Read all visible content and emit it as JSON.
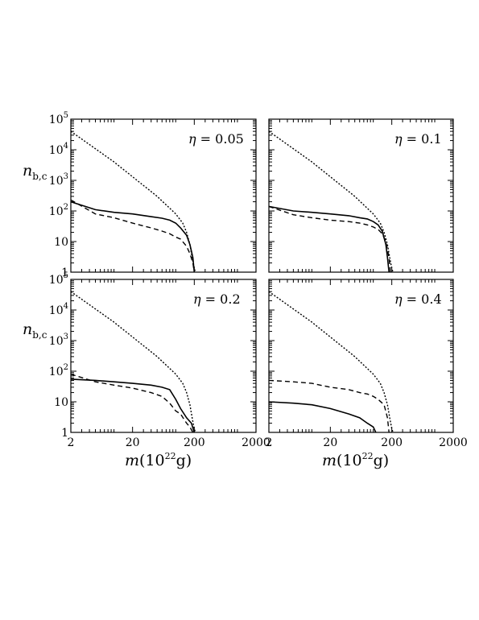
{
  "figure": {
    "ylabel": {
      "base": "n",
      "sub": "b,c"
    },
    "xlabel": {
      "var": "m",
      "unit_open": "(10",
      "unit_exp": "22",
      "unit_close": "g)"
    },
    "x_ticks": [
      "2",
      "20",
      "200",
      "2000"
    ],
    "y_ticks": [
      {
        "base": "10",
        "exp": "5"
      },
      {
        "base": "10",
        "exp": "4"
      },
      {
        "base": "10",
        "exp": "3"
      },
      {
        "base": "10",
        "exp": "2"
      },
      {
        "base": "10",
        "exp": ""
      },
      {
        "base": "1",
        "exp": ""
      }
    ]
  },
  "chart_data": [
    {
      "type": "line",
      "x_scale": "log",
      "y_scale": "log",
      "xlim": [
        2,
        2000
      ],
      "ylim": [
        1,
        100000
      ],
      "annotation": {
        "symbol": "η",
        "text": " = 0.05"
      },
      "series": [
        {
          "style": "dotted",
          "x": [
            2,
            10,
            50,
            100,
            130,
            150,
            170,
            185,
            200,
            210
          ],
          "y": [
            40000,
            4000,
            300,
            80,
            40,
            20,
            8,
            3,
            1.3,
            1
          ]
        },
        {
          "style": "solid",
          "x": [
            2,
            5,
            10,
            20,
            40,
            60,
            80,
            100,
            120,
            150,
            170,
            190,
            200
          ],
          "y": [
            200,
            110,
            90,
            80,
            65,
            58,
            50,
            40,
            28,
            16,
            8,
            3,
            1
          ]
        },
        {
          "style": "dashed",
          "x": [
            2,
            5,
            10,
            20,
            40,
            60,
            80,
            100,
            120,
            150,
            170,
            190,
            200
          ],
          "y": [
            230,
            80,
            60,
            40,
            28,
            22,
            18,
            14,
            12,
            7,
            4,
            2,
            1
          ]
        }
      ]
    },
    {
      "type": "line",
      "x_scale": "log",
      "y_scale": "log",
      "xlim": [
        2,
        2000
      ],
      "ylim": [
        1,
        100000
      ],
      "annotation": {
        "symbol": "η",
        "text": " = 0.1"
      },
      "series": [
        {
          "style": "dotted",
          "x": [
            2,
            10,
            50,
            100,
            130,
            150,
            170,
            185,
            200,
            210
          ],
          "y": [
            40000,
            4000,
            300,
            80,
            40,
            20,
            8,
            3,
            1.3,
            1
          ]
        },
        {
          "style": "solid",
          "x": [
            2,
            5,
            10,
            20,
            40,
            60,
            80,
            100,
            120,
            140,
            160,
            170,
            180
          ],
          "y": [
            140,
            100,
            90,
            80,
            70,
            60,
            55,
            45,
            35,
            22,
            8,
            3,
            1
          ]
        },
        {
          "style": "dashed",
          "x": [
            2,
            5,
            10,
            20,
            40,
            60,
            80,
            100,
            120,
            140,
            160,
            180,
            190
          ],
          "y": [
            140,
            75,
            60,
            50,
            45,
            40,
            35,
            30,
            25,
            18,
            10,
            3,
            1
          ]
        }
      ]
    },
    {
      "type": "line",
      "x_scale": "log",
      "y_scale": "log",
      "xlim": [
        2,
        2000
      ],
      "ylim": [
        1,
        100000
      ],
      "annotation": {
        "symbol": "η",
        "text": " = 0.2"
      },
      "series": [
        {
          "style": "dotted",
          "x": [
            2,
            10,
            50,
            100,
            130,
            150,
            170,
            185,
            200,
            210
          ],
          "y": [
            40000,
            4000,
            300,
            80,
            40,
            20,
            8,
            3,
            1.3,
            1
          ]
        },
        {
          "style": "solid",
          "x": [
            2,
            5,
            10,
            20,
            40,
            60,
            80,
            100,
            120,
            150,
            180,
            200
          ],
          "y": [
            55,
            50,
            45,
            40,
            35,
            30,
            25,
            12,
            6,
            3,
            2,
            1
          ]
        },
        {
          "style": "dashed",
          "x": [
            2,
            5,
            10,
            20,
            40,
            60,
            80,
            100,
            120,
            150,
            170,
            190
          ],
          "y": [
            80,
            45,
            35,
            28,
            20,
            15,
            9,
            5,
            4,
            2,
            1.5,
            1
          ]
        }
      ]
    },
    {
      "type": "line",
      "x_scale": "log",
      "y_scale": "log",
      "xlim": [
        2,
        2000
      ],
      "ylim": [
        1,
        100000
      ],
      "annotation": {
        "symbol": "η",
        "text": " = 0.4"
      },
      "series": [
        {
          "style": "dotted",
          "x": [
            2,
            10,
            50,
            100,
            130,
            150,
            170,
            185,
            200,
            210
          ],
          "y": [
            40000,
            4000,
            300,
            80,
            40,
            20,
            8,
            3,
            1.3,
            1
          ]
        },
        {
          "style": "solid",
          "x": [
            2,
            5,
            10,
            20,
            40,
            60,
            80,
            100,
            110
          ],
          "y": [
            10,
            9,
            8,
            6,
            4,
            3,
            2,
            1.5,
            1
          ]
        },
        {
          "style": "dashed",
          "x": [
            2,
            5,
            10,
            20,
            40,
            60,
            80,
            100,
            120,
            150,
            170,
            180
          ],
          "y": [
            50,
            45,
            40,
            30,
            25,
            20,
            18,
            15,
            12,
            8,
            3,
            1
          ]
        }
      ]
    }
  ]
}
